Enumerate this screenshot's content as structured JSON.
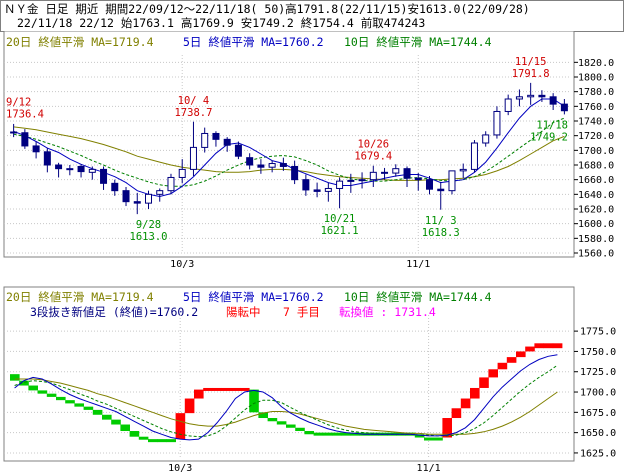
{
  "header": {
    "line1": "ＮＹ金 日足 期近 期間22/09/12～22/11/18( 50)高1791.8(22/11/15)安1613.0(22/09/28)",
    "line2": "22/11/18 22/12 始1763.1 高1769.9 安1749.2 終1754.4 前取474243"
  },
  "colors": {
    "up": "#ffffff",
    "down": "#000080",
    "ma20": "#808000",
    "ma5": "#0000c0",
    "ma10": "#008000",
    "high_label": "#d00000",
    "low_label": "#009000",
    "brick_up": "#ff0000",
    "brick_down": "#00cc00",
    "info_blue": "#000080",
    "info_red": "#ff0000",
    "info_magenta": "#ff00ff"
  },
  "chart_data": [
    {
      "type": "candlestick",
      "legend": {
        "ma20": "20日 終値平滑 MA=1719.4",
        "ma5": "5日 終値平滑 MA=1760.2",
        "ma10": "10日 終値平滑 MA=1744.4"
      },
      "x": [
        "09/12",
        "09/13",
        "09/14",
        "09/15",
        "09/16",
        "09/19",
        "09/20",
        "09/21",
        "09/22",
        "09/23",
        "09/26",
        "09/27",
        "09/28",
        "09/29",
        "09/30",
        "10/03",
        "10/04",
        "10/05",
        "10/06",
        "10/07",
        "10/10",
        "10/11",
        "10/12",
        "10/13",
        "10/14",
        "10/17",
        "10/18",
        "10/19",
        "10/20",
        "10/21",
        "10/24",
        "10/25",
        "10/26",
        "10/27",
        "10/28",
        "10/31",
        "11/01",
        "11/02",
        "11/03",
        "11/04",
        "11/07",
        "11/08",
        "11/09",
        "11/10",
        "11/11",
        "11/14",
        "11/15",
        "11/16",
        "11/17",
        "11/18"
      ],
      "xticks": [
        {
          "label": "10/3",
          "index": 15
        },
        {
          "label": "11/1",
          "index": 36
        }
      ],
      "open": [
        1725,
        1724,
        1706,
        1698,
        1680,
        1675,
        1678,
        1670,
        1674,
        1655,
        1645,
        1630,
        1628,
        1640,
        1645,
        1663,
        1674,
        1704,
        1723,
        1715,
        1707,
        1690,
        1680,
        1677,
        1682,
        1678,
        1660,
        1646,
        1644,
        1648,
        1658,
        1659,
        1660,
        1670,
        1669,
        1675,
        1662,
        1660,
        1647,
        1645,
        1672,
        1674,
        1710,
        1721,
        1753,
        1770,
        1773,
        1775,
        1773,
        1763
      ],
      "high": [
        1736,
        1729,
        1712,
        1703,
        1683,
        1680,
        1681,
        1678,
        1678,
        1660,
        1650,
        1642,
        1645,
        1648,
        1668,
        1688,
        1739,
        1731,
        1726,
        1718,
        1712,
        1696,
        1688,
        1686,
        1690,
        1686,
        1667,
        1656,
        1656,
        1663,
        1668,
        1670,
        1679,
        1676,
        1681,
        1678,
        1669,
        1665,
        1657,
        1672,
        1682,
        1714,
        1726,
        1760,
        1776,
        1783,
        1792,
        1782,
        1778,
        1770
      ],
      "low": [
        1718,
        1702,
        1689,
        1670,
        1663,
        1666,
        1663,
        1660,
        1646,
        1638,
        1624,
        1613,
        1620,
        1630,
        1640,
        1655,
        1665,
        1697,
        1705,
        1698,
        1688,
        1674,
        1668,
        1670,
        1672,
        1654,
        1638,
        1636,
        1630,
        1621,
        1642,
        1648,
        1650,
        1660,
        1664,
        1650,
        1645,
        1640,
        1619,
        1640,
        1662,
        1670,
        1705,
        1716,
        1748,
        1760,
        1762,
        1766,
        1755,
        1749
      ],
      "close": [
        1725,
        1706,
        1698,
        1680,
        1675,
        1674,
        1671,
        1674,
        1655,
        1645,
        1630,
        1628,
        1640,
        1645,
        1663,
        1674,
        1704,
        1723,
        1715,
        1707,
        1692,
        1680,
        1677,
        1682,
        1678,
        1660,
        1646,
        1644,
        1648,
        1658,
        1659,
        1660,
        1670,
        1669,
        1675,
        1662,
        1660,
        1647,
        1645,
        1672,
        1674,
        1710,
        1721,
        1753,
        1770,
        1773,
        1775,
        1773,
        1763,
        1754
      ],
      "ma5": [
        1726,
        1720,
        1712,
        1703,
        1697,
        1688,
        1681,
        1675,
        1670,
        1664,
        1656,
        1645,
        1640,
        1637,
        1641,
        1651,
        1664,
        1680,
        1696,
        1708,
        1710,
        1704,
        1695,
        1686,
        1682,
        1674,
        1668,
        1662,
        1656,
        1652,
        1652,
        1655,
        1658,
        1662,
        1665,
        1667,
        1667,
        1662,
        1656,
        1658,
        1660,
        1670,
        1684,
        1703,
        1724,
        1744,
        1760,
        1770,
        1770,
        1760
      ],
      "ma10": [
        1722,
        1719,
        1715,
        1710,
        1705,
        1699,
        1693,
        1686,
        1680,
        1673,
        1667,
        1662,
        1657,
        1653,
        1651,
        1651,
        1653,
        1658,
        1665,
        1673,
        1680,
        1686,
        1690,
        1692,
        1693,
        1691,
        1686,
        1680,
        1672,
        1666,
        1661,
        1659,
        1658,
        1658,
        1660,
        1662,
        1663,
        1661,
        1659,
        1658,
        1660,
        1664,
        1671,
        1681,
        1692,
        1703,
        1714,
        1726,
        1738,
        1744
      ],
      "ma20": [
        1732,
        1730,
        1728,
        1725,
        1722,
        1719,
        1716,
        1712,
        1708,
        1703,
        1698,
        1692,
        1688,
        1684,
        1680,
        1677,
        1675,
        1673,
        1671,
        1670,
        1670,
        1671,
        1673,
        1674,
        1674,
        1673,
        1671,
        1668,
        1666,
        1664,
        1663,
        1662,
        1661,
        1660,
        1659,
        1659,
        1659,
        1660,
        1660,
        1661,
        1662,
        1664,
        1667,
        1672,
        1678,
        1686,
        1695,
        1704,
        1713,
        1719
      ],
      "ylim": [
        1560,
        1830
      ],
      "yticks": [
        1560,
        1580,
        1600,
        1620,
        1640,
        1660,
        1680,
        1700,
        1720,
        1740,
        1760,
        1780,
        1800,
        1820
      ],
      "annotations": [
        {
          "kind": "high",
          "date": "9/12",
          "value": "1736.4",
          "index": 0,
          "price": 1736.4
        },
        {
          "kind": "high",
          "date": "10/ 4",
          "value": "1738.7",
          "index": 16,
          "price": 1738.7
        },
        {
          "kind": "high",
          "date": "10/26",
          "value": "1679.4",
          "index": 32,
          "price": 1679.4
        },
        {
          "kind": "high",
          "date": "11/15",
          "value": "1791.8",
          "index": 46,
          "price": 1791.8
        },
        {
          "kind": "low",
          "date": "9/28",
          "value": "1613.0",
          "index": 12,
          "price": 1613.0
        },
        {
          "kind": "low",
          "date": "10/21",
          "value": "1621.1",
          "index": 29,
          "price": 1621.1
        },
        {
          "kind": "low",
          "date": "11/ 3",
          "value": "1618.3",
          "index": 38,
          "price": 1618.3
        },
        {
          "kind": "low",
          "date": "11/18",
          "value": "1749.2",
          "index": 49,
          "price": 1749.2
        }
      ]
    },
    {
      "type": "three-line-break",
      "legend": {
        "ma20": "20日 終値平滑 MA=1719.4",
        "ma5": "5日 終値平滑 MA=1760.2",
        "ma10": "10日 終値平滑 MA=1744.4"
      },
      "info": {
        "part1": "3段抜き新値足 (終値)=1760.2",
        "part2": "陽転中",
        "part3": "7 手目",
        "part4": "転換値 : 1731.4"
      },
      "ylim": [
        1620,
        1785
      ],
      "yticks": [
        1625,
        1650,
        1675,
        1700,
        1725,
        1750,
        1775
      ],
      "bricks": [
        {
          "dir": "down",
          "lo": 1714,
          "hi": 1722
        },
        {
          "dir": "down",
          "lo": 1708,
          "hi": 1714
        },
        {
          "dir": "down",
          "lo": 1702,
          "hi": 1708
        },
        {
          "dir": "down",
          "lo": 1698,
          "hi": 1702
        },
        {
          "dir": "down",
          "lo": 1694,
          "hi": 1698
        },
        {
          "dir": "down",
          "lo": 1690,
          "hi": 1694
        },
        {
          "dir": "down",
          "lo": 1686,
          "hi": 1690
        },
        {
          "dir": "down",
          "lo": 1682,
          "hi": 1686
        },
        {
          "dir": "down",
          "lo": 1678,
          "hi": 1682
        },
        {
          "dir": "down",
          "lo": 1672,
          "hi": 1678
        },
        {
          "dir": "down",
          "lo": 1666,
          "hi": 1672
        },
        {
          "dir": "down",
          "lo": 1660,
          "hi": 1666
        },
        {
          "dir": "down",
          "lo": 1652,
          "hi": 1660
        },
        {
          "dir": "down",
          "lo": 1645,
          "hi": 1652
        },
        {
          "dir": "down",
          "lo": 1642,
          "hi": 1645
        },
        {
          "dir": "down",
          "lo": 1640,
          "hi": 1642
        },
        {
          "dir": "down",
          "lo": 1640,
          "hi": 1642
        },
        {
          "dir": "down",
          "lo": 1640,
          "hi": 1642
        },
        {
          "dir": "up",
          "lo": 1642,
          "hi": 1674
        },
        {
          "dir": "up",
          "lo": 1674,
          "hi": 1692
        },
        {
          "dir": "up",
          "lo": 1692,
          "hi": 1703
        },
        {
          "dir": "up",
          "lo": 1703,
          "hi": 1705
        },
        {
          "dir": "up",
          "lo": 1703,
          "hi": 1705
        },
        {
          "dir": "up",
          "lo": 1703,
          "hi": 1705
        },
        {
          "dir": "up",
          "lo": 1703,
          "hi": 1705
        },
        {
          "dir": "up",
          "lo": 1703,
          "hi": 1705
        },
        {
          "dir": "down",
          "lo": 1675,
          "hi": 1703
        },
        {
          "dir": "down",
          "lo": 1668,
          "hi": 1675
        },
        {
          "dir": "down",
          "lo": 1664,
          "hi": 1668
        },
        {
          "dir": "down",
          "lo": 1660,
          "hi": 1664
        },
        {
          "dir": "down",
          "lo": 1656,
          "hi": 1660
        },
        {
          "dir": "down",
          "lo": 1652,
          "hi": 1656
        },
        {
          "dir": "down",
          "lo": 1648,
          "hi": 1652
        },
        {
          "dir": "down",
          "lo": 1648,
          "hi": 1650
        },
        {
          "dir": "down",
          "lo": 1648,
          "hi": 1650
        },
        {
          "dir": "down",
          "lo": 1648,
          "hi": 1650
        },
        {
          "dir": "down",
          "lo": 1648,
          "hi": 1650
        },
        {
          "dir": "down",
          "lo": 1648,
          "hi": 1650
        },
        {
          "dir": "down",
          "lo": 1648,
          "hi": 1650
        },
        {
          "dir": "down",
          "lo": 1648,
          "hi": 1650
        },
        {
          "dir": "down",
          "lo": 1648,
          "hi": 1650
        },
        {
          "dir": "down",
          "lo": 1648,
          "hi": 1650
        },
        {
          "dir": "down",
          "lo": 1648,
          "hi": 1650
        },
        {
          "dir": "down",
          "lo": 1648,
          "hi": 1650
        },
        {
          "dir": "down",
          "lo": 1644,
          "hi": 1648
        },
        {
          "dir": "down",
          "lo": 1642,
          "hi": 1644
        },
        {
          "dir": "down",
          "lo": 1642,
          "hi": 1644
        },
        {
          "dir": "up",
          "lo": 1644,
          "hi": 1668
        },
        {
          "dir": "up",
          "lo": 1668,
          "hi": 1680
        },
        {
          "dir": "up",
          "lo": 1680,
          "hi": 1692
        },
        {
          "dir": "up",
          "lo": 1692,
          "hi": 1705
        },
        {
          "dir": "up",
          "lo": 1705,
          "hi": 1718
        },
        {
          "dir": "up",
          "lo": 1718,
          "hi": 1728
        },
        {
          "dir": "up",
          "lo": 1728,
          "hi": 1736
        },
        {
          "dir": "up",
          "lo": 1736,
          "hi": 1743
        },
        {
          "dir": "up",
          "lo": 1743,
          "hi": 1750
        },
        {
          "dir": "up",
          "lo": 1750,
          "hi": 1756
        },
        {
          "dir": "up",
          "lo": 1754,
          "hi": 1760
        },
        {
          "dir": "up",
          "lo": 1754,
          "hi": 1760
        },
        {
          "dir": "up",
          "lo": 1754,
          "hi": 1760
        }
      ],
      "ma5": [
        1705,
        1714,
        1718,
        1716,
        1710,
        1703,
        1697,
        1692,
        1688,
        1684,
        1680,
        1676,
        1670,
        1664,
        1658,
        1652,
        1648,
        1644,
        1642,
        1641,
        1642,
        1650,
        1662,
        1676,
        1692,
        1700,
        1702,
        1700,
        1693,
        1682,
        1674,
        1668,
        1663,
        1659,
        1655,
        1652,
        1650,
        1649,
        1648,
        1648,
        1648,
        1648,
        1648,
        1648,
        1647,
        1646,
        1646,
        1647,
        1650,
        1656,
        1666,
        1680,
        1694,
        1706,
        1716,
        1726,
        1734,
        1740,
        1744,
        1746
      ],
      "ma10": [
        1708,
        1712,
        1714,
        1713,
        1711,
        1707,
        1703,
        1698,
        1694,
        1689,
        1685,
        1680,
        1675,
        1670,
        1665,
        1660,
        1655,
        1651,
        1648,
        1646,
        1645,
        1646,
        1650,
        1658,
        1668,
        1678,
        1686,
        1690,
        1690,
        1687,
        1681,
        1675,
        1670,
        1665,
        1660,
        1656,
        1653,
        1651,
        1650,
        1649,
        1648,
        1648,
        1648,
        1648,
        1647,
        1647,
        1646,
        1646,
        1647,
        1650,
        1655,
        1662,
        1671,
        1681,
        1691,
        1701,
        1710,
        1718,
        1725,
        1733
      ],
      "ma20": [
        1716,
        1716,
        1716,
        1715,
        1713,
        1711,
        1708,
        1705,
        1702,
        1698,
        1695,
        1691,
        1687,
        1683,
        1679,
        1675,
        1671,
        1667,
        1664,
        1661,
        1659,
        1658,
        1658,
        1660,
        1663,
        1667,
        1671,
        1674,
        1676,
        1676,
        1675,
        1673,
        1670,
        1667,
        1664,
        1661,
        1658,
        1656,
        1654,
        1653,
        1652,
        1651,
        1650,
        1649,
        1649,
        1648,
        1648,
        1648,
        1648,
        1648,
        1649,
        1651,
        1654,
        1658,
        1663,
        1669,
        1676,
        1684,
        1692,
        1700
      ],
      "xticks": [
        {
          "label": "10/3",
          "brick": 18
        },
        {
          "label": "11/1",
          "brick": 45
        }
      ]
    }
  ]
}
